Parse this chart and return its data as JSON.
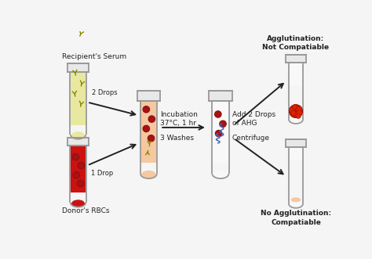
{
  "bg_color": "#f5f5f5",
  "tube1_label": "Recipient's Serum",
  "tube2_label": "Donor's RBCs",
  "label_2drops": "2 Drops",
  "label_1drop": "1 Drop",
  "label_incubation": "Incubation\n37°C, 1 hr",
  "label_3washes": "3 Washes",
  "label_add2drops": "Add 2 Drops\nof AHG",
  "label_centrifuge": "Centrifuge",
  "label_agglut_yes": "Agglutination:\nNot Compatiable",
  "label_agglut_no": "No Agglutination:\nCompatiable",
  "tube_outline": "#999999",
  "tube1_fill": "#e8e8a0",
  "tube2_fill": "#cc1111",
  "tube3_fill": "#f5c8a0",
  "tube4_fill": "#f0f0f0",
  "rbc_color": "#aa1111",
  "rbc_edge": "#881111",
  "antibody_color": "#888800",
  "ahg_color": "#3366cc",
  "arrow_color": "#222222",
  "text_color": "#222222"
}
